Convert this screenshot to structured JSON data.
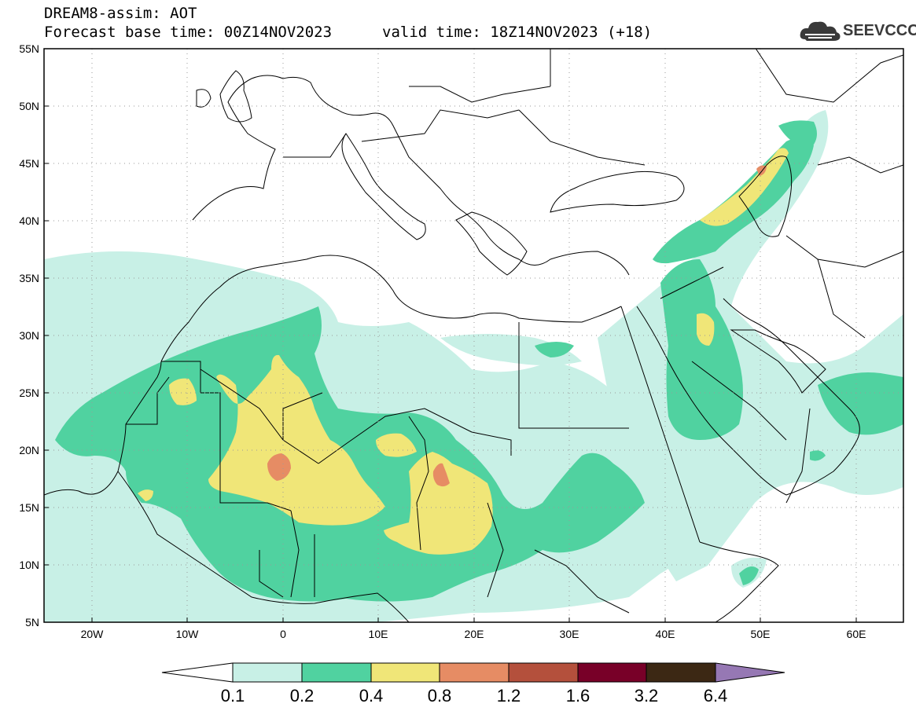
{
  "header": {
    "line1": "DREAM8-assim: AOT",
    "line2": "Forecast base time: 00Z14NOV2023",
    "valid": "valid time: 18Z14NOV2023 (+18)"
  },
  "logo": {
    "text": "SEEVCCC",
    "icon": "cloud-icon"
  },
  "axes": {
    "lat_labels": [
      "55N",
      "50N",
      "45N",
      "40N",
      "35N",
      "30N",
      "25N",
      "20N",
      "15N",
      "10N",
      "5N"
    ],
    "lon_labels": [
      "20W",
      "10W",
      "0",
      "10E",
      "20E",
      "30E",
      "40E",
      "50E",
      "60E"
    ]
  },
  "colorbar": {
    "labels": [
      "0.1",
      "0.2",
      "0.4",
      "0.8",
      "1.2",
      "1.6",
      "3.2",
      "6.4"
    ],
    "colors": [
      "#c8f0e6",
      "#50d2a0",
      "#f0e678",
      "#e68c64",
      "#b4503c",
      "#780028",
      "#3c2814",
      "#9678b4"
    ],
    "under_color": "#ffffff"
  }
}
